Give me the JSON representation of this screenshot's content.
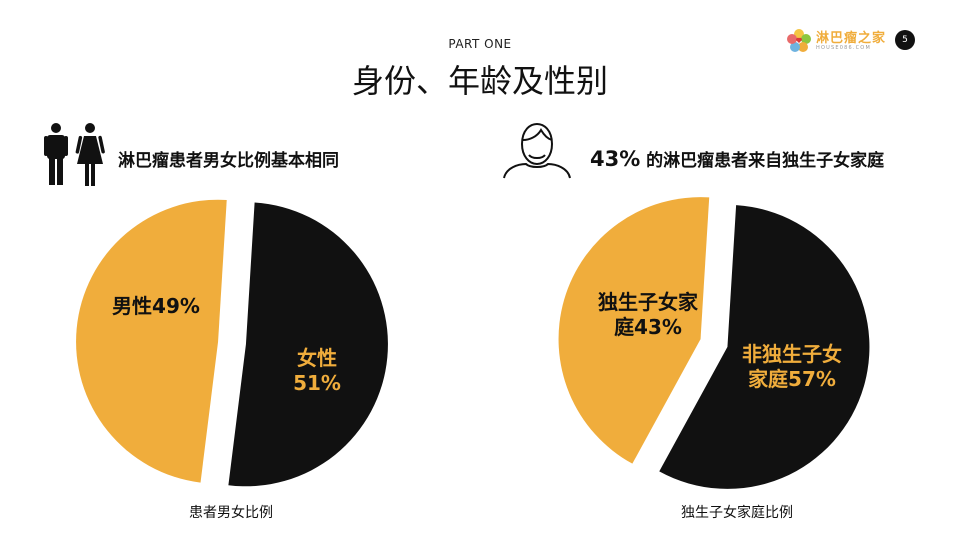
{
  "header": {
    "part_label": "PART ONE",
    "title": "身份、年龄及性别",
    "logo": {
      "name": "淋巴瘤之家",
      "sub": "HOUSE086.COM"
    },
    "page_number": "5"
  },
  "left": {
    "icon": "man-and-woman-icon",
    "heading": "淋巴瘤患者男女比例基本相同",
    "caption": "患者男女比例"
  },
  "right": {
    "icon": "person-outline-icon",
    "heading_value": "43%",
    "heading_text": " 的淋巴瘤患者来自独生子女家庭",
    "caption": "独生子女家庭比例"
  },
  "colors": {
    "orange": "#f0ad3c",
    "black": "#111111",
    "label_on_orange": "#111111",
    "label_on_black": "#f0ad3c"
  },
  "chart_data": [
    {
      "type": "pie",
      "title": "患者男女比例",
      "slices": [
        {
          "label": "男性49%",
          "value": 49,
          "color": "#f0ad3c"
        },
        {
          "label": "女性\n51%",
          "value": 51,
          "color": "#111111"
        }
      ]
    },
    {
      "type": "pie",
      "title": "独生子女家庭比例",
      "slices": [
        {
          "label": "独生子女家\n庭43%",
          "value": 43,
          "color": "#f0ad3c"
        },
        {
          "label": "非独生子女\n家庭57%",
          "value": 57,
          "color": "#111111"
        }
      ]
    }
  ]
}
